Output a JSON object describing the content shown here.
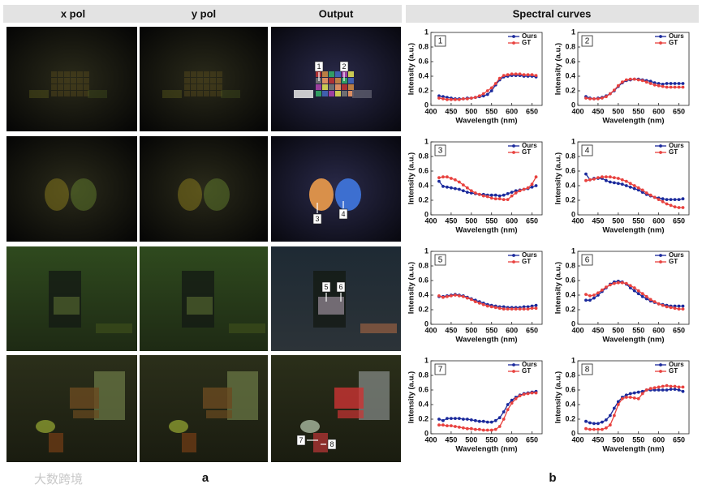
{
  "column_titles": [
    "x pol",
    "y pol",
    "Output"
  ],
  "panel_title": "Spectral curves",
  "panel_labels": [
    "a",
    "b"
  ],
  "watermark": "大数跨境",
  "image_annotations": [
    "1",
    "2",
    "3",
    "4",
    "5",
    "6",
    "7",
    "8"
  ],
  "chart_data": [
    {
      "type": "line",
      "title": "1",
      "xlabel": "Wavelength (nm)",
      "ylabel": "Intensity (a.u.)",
      "legend": "top-right",
      "x": [
        420,
        430,
        440,
        450,
        460,
        470,
        480,
        490,
        500,
        510,
        520,
        530,
        540,
        550,
        560,
        570,
        580,
        590,
        600,
        610,
        620,
        630,
        640,
        650,
        660
      ],
      "xlim": [
        400,
        675
      ],
      "xticks": [
        400,
        450,
        500,
        550,
        600,
        650
      ],
      "ylim": [
        0,
        1
      ],
      "yticks": [
        0,
        0.2,
        0.4,
        0.6,
        0.8,
        1
      ],
      "series": [
        {
          "name": "Ours",
          "color": "#1b2a9c",
          "values": [
            0.13,
            0.12,
            0.11,
            0.1,
            0.09,
            0.09,
            0.09,
            0.1,
            0.1,
            0.11,
            0.12,
            0.13,
            0.15,
            0.2,
            0.28,
            0.35,
            0.39,
            0.4,
            0.41,
            0.41,
            0.41,
            0.4,
            0.4,
            0.4,
            0.39
          ]
        },
        {
          "name": "GT",
          "color": "#e8423f",
          "values": [
            0.1,
            0.09,
            0.08,
            0.08,
            0.08,
            0.08,
            0.09,
            0.09,
            0.1,
            0.11,
            0.13,
            0.16,
            0.2,
            0.24,
            0.3,
            0.37,
            0.41,
            0.42,
            0.43,
            0.43,
            0.43,
            0.42,
            0.42,
            0.42,
            0.41
          ]
        }
      ]
    },
    {
      "type": "line",
      "title": "2",
      "xlabel": "Wavelength (nm)",
      "ylabel": "Intensity (a.u.)",
      "legend": "top-right",
      "x": [
        420,
        430,
        440,
        450,
        460,
        470,
        480,
        490,
        500,
        510,
        520,
        530,
        540,
        550,
        560,
        570,
        580,
        590,
        600,
        610,
        620,
        630,
        640,
        650,
        660
      ],
      "xlim": [
        400,
        675
      ],
      "xticks": [
        400,
        450,
        500,
        550,
        600,
        650
      ],
      "ylim": [
        0,
        1
      ],
      "yticks": [
        0,
        0.2,
        0.4,
        0.6,
        0.8,
        1
      ],
      "series": [
        {
          "name": "Ours",
          "color": "#1b2a9c",
          "values": [
            0.12,
            0.1,
            0.09,
            0.1,
            0.11,
            0.13,
            0.16,
            0.2,
            0.26,
            0.31,
            0.34,
            0.35,
            0.36,
            0.36,
            0.35,
            0.34,
            0.33,
            0.31,
            0.3,
            0.29,
            0.3,
            0.3,
            0.3,
            0.3,
            0.3
          ]
        },
        {
          "name": "GT",
          "color": "#e8423f",
          "values": [
            0.1,
            0.09,
            0.09,
            0.09,
            0.1,
            0.12,
            0.16,
            0.21,
            0.27,
            0.32,
            0.35,
            0.36,
            0.36,
            0.35,
            0.34,
            0.32,
            0.3,
            0.28,
            0.27,
            0.26,
            0.25,
            0.25,
            0.25,
            0.25,
            0.25
          ]
        }
      ]
    },
    {
      "type": "line",
      "title": "3",
      "xlabel": "Wavelength (nm)",
      "ylabel": "Intensity (a.u.)",
      "legend": "top-right",
      "x": [
        420,
        430,
        440,
        450,
        460,
        470,
        480,
        490,
        500,
        510,
        520,
        530,
        540,
        550,
        560,
        570,
        580,
        590,
        600,
        610,
        620,
        630,
        640,
        650,
        660
      ],
      "xlim": [
        400,
        675
      ],
      "xticks": [
        400,
        450,
        500,
        550,
        600,
        650
      ],
      "ylim": [
        0,
        1
      ],
      "yticks": [
        0,
        0.2,
        0.4,
        0.6,
        0.8,
        1
      ],
      "series": [
        {
          "name": "Ours",
          "color": "#1b2a9c",
          "values": [
            0.46,
            0.39,
            0.38,
            0.37,
            0.36,
            0.35,
            0.33,
            0.31,
            0.3,
            0.29,
            0.28,
            0.28,
            0.27,
            0.27,
            0.27,
            0.26,
            0.27,
            0.29,
            0.31,
            0.33,
            0.34,
            0.35,
            0.36,
            0.38,
            0.4
          ]
        },
        {
          "name": "GT",
          "color": "#e8423f",
          "values": [
            0.51,
            0.52,
            0.52,
            0.5,
            0.48,
            0.45,
            0.41,
            0.37,
            0.33,
            0.3,
            0.28,
            0.26,
            0.25,
            0.23,
            0.22,
            0.22,
            0.21,
            0.21,
            0.26,
            0.3,
            0.33,
            0.35,
            0.37,
            0.42,
            0.52
          ]
        }
      ]
    },
    {
      "type": "line",
      "title": "4",
      "xlabel": "Wavelength (nm)",
      "ylabel": "Intensity (a.u.)",
      "legend": "top-right",
      "x": [
        420,
        430,
        440,
        450,
        460,
        470,
        480,
        490,
        500,
        510,
        520,
        530,
        540,
        550,
        560,
        570,
        580,
        590,
        600,
        610,
        620,
        630,
        640,
        650,
        660
      ],
      "xlim": [
        400,
        675
      ],
      "xticks": [
        400,
        450,
        500,
        550,
        600,
        650
      ],
      "ylim": [
        0,
        1
      ],
      "yticks": [
        0,
        0.2,
        0.4,
        0.6,
        0.8,
        1
      ],
      "series": [
        {
          "name": "Ours",
          "color": "#1b2a9c",
          "values": [
            0.56,
            0.48,
            0.5,
            0.5,
            0.5,
            0.47,
            0.45,
            0.44,
            0.43,
            0.42,
            0.4,
            0.38,
            0.36,
            0.34,
            0.31,
            0.28,
            0.26,
            0.24,
            0.23,
            0.22,
            0.21,
            0.21,
            0.21,
            0.21,
            0.22
          ]
        },
        {
          "name": "GT",
          "color": "#e8423f",
          "values": [
            0.47,
            0.48,
            0.49,
            0.51,
            0.52,
            0.52,
            0.52,
            0.51,
            0.5,
            0.48,
            0.46,
            0.43,
            0.4,
            0.37,
            0.34,
            0.3,
            0.27,
            0.24,
            0.21,
            0.18,
            0.15,
            0.13,
            0.11,
            0.1,
            0.1
          ]
        }
      ]
    },
    {
      "type": "line",
      "title": "5",
      "xlabel": "Wavelength (nm)",
      "ylabel": "Intensity (a.u.)",
      "legend": "top-right",
      "x": [
        420,
        430,
        440,
        450,
        460,
        470,
        480,
        490,
        500,
        510,
        520,
        530,
        540,
        550,
        560,
        570,
        580,
        590,
        600,
        610,
        620,
        630,
        640,
        650,
        660
      ],
      "xlim": [
        400,
        675
      ],
      "xticks": [
        400,
        450,
        500,
        550,
        600,
        650
      ],
      "ylim": [
        0,
        1
      ],
      "yticks": [
        0,
        0.2,
        0.4,
        0.6,
        0.8,
        1
      ],
      "series": [
        {
          "name": "Ours",
          "color": "#1b2a9c",
          "values": [
            0.38,
            0.38,
            0.39,
            0.4,
            0.41,
            0.4,
            0.39,
            0.37,
            0.35,
            0.33,
            0.31,
            0.29,
            0.27,
            0.26,
            0.25,
            0.24,
            0.24,
            0.23,
            0.23,
            0.23,
            0.23,
            0.24,
            0.24,
            0.25,
            0.26
          ]
        },
        {
          "name": "GT",
          "color": "#e8423f",
          "values": [
            0.39,
            0.37,
            0.38,
            0.39,
            0.4,
            0.39,
            0.38,
            0.36,
            0.34,
            0.31,
            0.29,
            0.27,
            0.25,
            0.24,
            0.23,
            0.22,
            0.21,
            0.21,
            0.21,
            0.21,
            0.21,
            0.21,
            0.21,
            0.22,
            0.22
          ]
        }
      ]
    },
    {
      "type": "line",
      "title": "6",
      "xlabel": "Wavelength (nm)",
      "ylabel": "Intensity (a.u.)",
      "legend": "top-right",
      "x": [
        420,
        430,
        440,
        450,
        460,
        470,
        480,
        490,
        500,
        510,
        520,
        530,
        540,
        550,
        560,
        570,
        580,
        590,
        600,
        610,
        620,
        630,
        640,
        650,
        660
      ],
      "xlim": [
        400,
        675
      ],
      "xticks": [
        400,
        450,
        500,
        550,
        600,
        650
      ],
      "ylim": [
        0,
        1
      ],
      "yticks": [
        0,
        0.2,
        0.4,
        0.6,
        0.8,
        1
      ],
      "series": [
        {
          "name": "Ours",
          "color": "#1b2a9c",
          "values": [
            0.33,
            0.33,
            0.36,
            0.4,
            0.45,
            0.5,
            0.55,
            0.58,
            0.59,
            0.58,
            0.55,
            0.5,
            0.46,
            0.42,
            0.38,
            0.35,
            0.32,
            0.3,
            0.28,
            0.27,
            0.26,
            0.25,
            0.25,
            0.25,
            0.25
          ]
        },
        {
          "name": "GT",
          "color": "#e8423f",
          "values": [
            0.41,
            0.39,
            0.4,
            0.43,
            0.47,
            0.51,
            0.54,
            0.56,
            0.57,
            0.57,
            0.56,
            0.53,
            0.5,
            0.46,
            0.42,
            0.38,
            0.34,
            0.31,
            0.28,
            0.26,
            0.24,
            0.23,
            0.22,
            0.21,
            0.21
          ]
        }
      ]
    },
    {
      "type": "line",
      "title": "7",
      "xlabel": "Wavelength (nm)",
      "ylabel": "Intensity (a.u.)",
      "legend": "top-right",
      "x": [
        420,
        430,
        440,
        450,
        460,
        470,
        480,
        490,
        500,
        510,
        520,
        530,
        540,
        550,
        560,
        570,
        580,
        590,
        600,
        610,
        620,
        630,
        640,
        650,
        660
      ],
      "xlim": [
        400,
        675
      ],
      "xticks": [
        400,
        450,
        500,
        550,
        600,
        650
      ],
      "ylim": [
        0,
        1
      ],
      "yticks": [
        0,
        0.2,
        0.4,
        0.6,
        0.8,
        1
      ],
      "series": [
        {
          "name": "Ours",
          "color": "#1b2a9c",
          "values": [
            0.2,
            0.18,
            0.21,
            0.21,
            0.21,
            0.21,
            0.2,
            0.2,
            0.19,
            0.18,
            0.17,
            0.17,
            0.16,
            0.16,
            0.18,
            0.22,
            0.3,
            0.4,
            0.46,
            0.5,
            0.53,
            0.55,
            0.56,
            0.57,
            0.58
          ]
        },
        {
          "name": "GT",
          "color": "#e8423f",
          "values": [
            0.12,
            0.12,
            0.11,
            0.11,
            0.1,
            0.09,
            0.08,
            0.07,
            0.07,
            0.06,
            0.06,
            0.05,
            0.05,
            0.05,
            0.06,
            0.1,
            0.2,
            0.33,
            0.42,
            0.48,
            0.52,
            0.54,
            0.55,
            0.56,
            0.56
          ]
        }
      ]
    },
    {
      "type": "line",
      "title": "8",
      "xlabel": "Wavelength (nm)",
      "ylabel": "Intensity (a.u.)",
      "legend": "top-right",
      "x": [
        420,
        430,
        440,
        450,
        460,
        470,
        480,
        490,
        500,
        510,
        520,
        530,
        540,
        550,
        560,
        570,
        580,
        590,
        600,
        610,
        620,
        630,
        640,
        650,
        660
      ],
      "xlim": [
        400,
        675
      ],
      "xticks": [
        400,
        450,
        500,
        550,
        600,
        650
      ],
      "ylim": [
        0,
        1
      ],
      "yticks": [
        0,
        0.2,
        0.4,
        0.6,
        0.8,
        1
      ],
      "series": [
        {
          "name": "Ours",
          "color": "#1b2a9c",
          "values": [
            0.17,
            0.15,
            0.14,
            0.14,
            0.16,
            0.19,
            0.25,
            0.35,
            0.44,
            0.5,
            0.53,
            0.55,
            0.56,
            0.57,
            0.58,
            0.6,
            0.6,
            0.6,
            0.6,
            0.6,
            0.6,
            0.61,
            0.61,
            0.6,
            0.58
          ]
        },
        {
          "name": "GT",
          "color": "#e8423f",
          "values": [
            0.07,
            0.06,
            0.06,
            0.06,
            0.06,
            0.08,
            0.12,
            0.25,
            0.4,
            0.48,
            0.5,
            0.5,
            0.49,
            0.48,
            0.55,
            0.6,
            0.62,
            0.63,
            0.64,
            0.65,
            0.66,
            0.65,
            0.65,
            0.64,
            0.64
          ]
        }
      ]
    }
  ]
}
